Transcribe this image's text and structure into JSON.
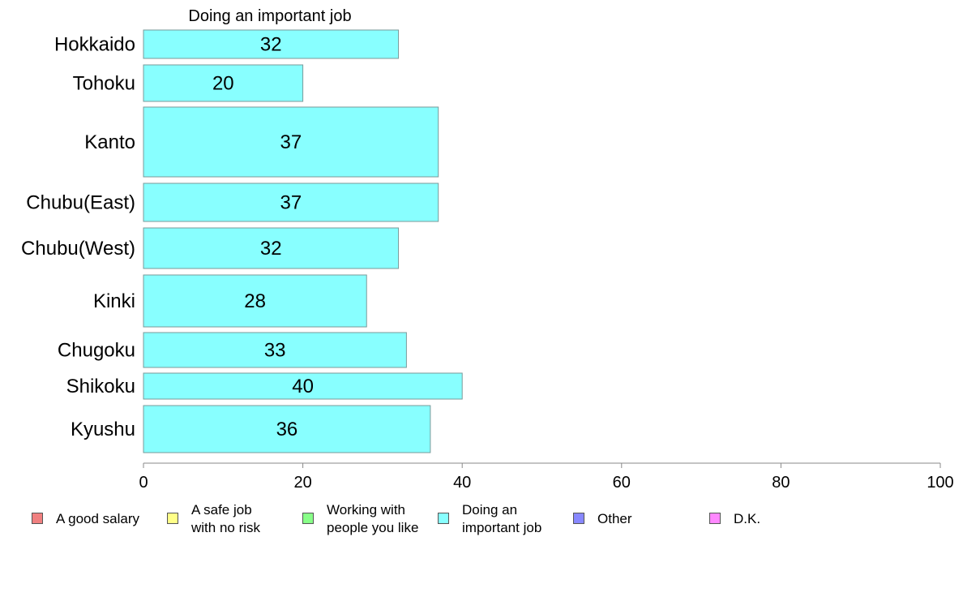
{
  "chart_data": {
    "type": "bar",
    "orientation": "horizontal",
    "title": "Doing an important job",
    "categories": [
      "Hokkaido",
      "Tohoku",
      "Kanto",
      "Chubu(East)",
      "Chubu(West)",
      "Kinki",
      "Chugoku",
      "Shikoku",
      "Kyushu"
    ],
    "series": [
      {
        "name": "Doing an important job",
        "values": [
          32,
          20,
          37,
          37,
          32,
          28,
          33,
          40,
          36
        ],
        "color": "#88ffff"
      }
    ],
    "xlim": [
      0,
      100
    ],
    "xticks": [
      "0",
      "20",
      "40",
      "60",
      "80",
      "100"
    ],
    "grid": false,
    "legend_placement": "bottom"
  },
  "legend": [
    {
      "label": "A good salary",
      "color": "#f08080"
    },
    {
      "label": "A safe job\nwith no risk",
      "color": "#ffff88"
    },
    {
      "label": "Working with\npeople you like",
      "color": "#88ff88"
    },
    {
      "label": "Doing an\nimportant job",
      "color": "#88ffff"
    },
    {
      "label": "Other",
      "color": "#8888ff"
    },
    {
      "label": "D.K.",
      "color": "#ff88ff"
    }
  ]
}
